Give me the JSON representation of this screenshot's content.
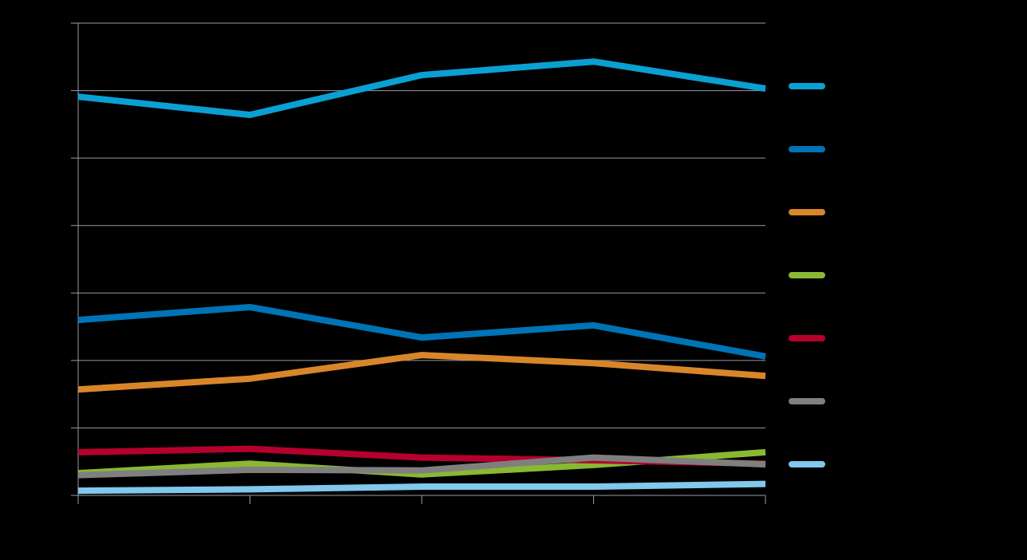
{
  "chart_data": {
    "type": "line",
    "categories": [
      null,
      null,
      null,
      null,
      null
    ],
    "series": [
      {
        "color": "#0aa0d2",
        "values": [
          5.91,
          5.64,
          6.23,
          6.43,
          6.03
        ]
      },
      {
        "color": "#0073b6",
        "values": [
          2.6,
          2.79,
          2.34,
          2.52,
          2.06
        ]
      },
      {
        "color": "#d9862a",
        "values": [
          1.57,
          1.73,
          2.08,
          1.96,
          1.77
        ]
      },
      {
        "color": "#8ab833",
        "values": [
          0.33,
          0.47,
          0.31,
          0.45,
          0.64
        ]
      },
      {
        "color": "#b5002d",
        "values": [
          0.64,
          0.69,
          0.56,
          0.52,
          0.47
        ]
      },
      {
        "color": "#7f7f7f",
        "values": [
          0.3,
          0.38,
          0.37,
          0.56,
          0.46
        ]
      },
      {
        "color": "#80c8ec",
        "values": [
          0.07,
          0.09,
          0.13,
          0.13,
          0.17
        ]
      }
    ],
    "ylim": [
      0,
      7
    ],
    "yticks": [
      0,
      1,
      2,
      3,
      4,
      5,
      6,
      7
    ],
    "grid": true,
    "legend": "right"
  }
}
